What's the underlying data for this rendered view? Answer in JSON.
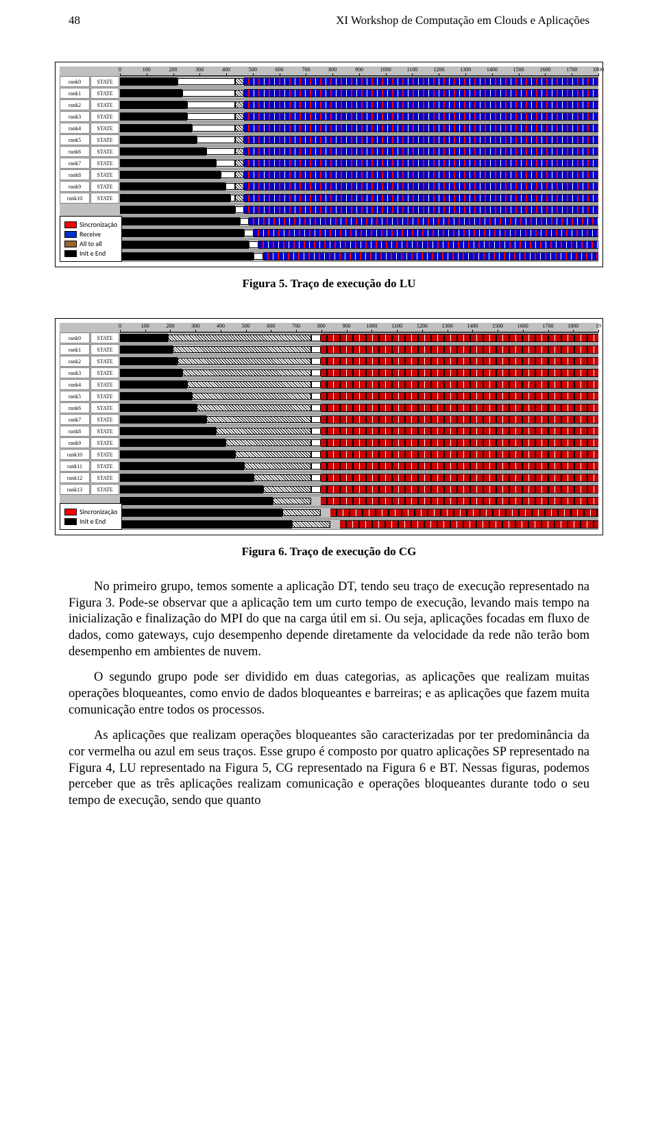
{
  "header": {
    "page_number": "48",
    "running_title": "XI Workshop de Computação em Clouds e Aplicações"
  },
  "figure5": {
    "caption": "Figura 5. Traço de execução do LU",
    "ruler_start": 0,
    "ruler_ticks": [
      "0",
      "100",
      "200",
      "300",
      "400",
      "500",
      "600",
      "700",
      "800",
      "900",
      "1000",
      "1100",
      "1200",
      "1300",
      "1400",
      "1500",
      "1600",
      "1700",
      "1800"
    ],
    "ranks": [
      "rank0",
      "rank1",
      "rank2",
      "rank3",
      "rank4",
      "rank5",
      "rank6",
      "rank7",
      "rank8",
      "rank9",
      "rank10"
    ],
    "state_label": "STATE",
    "init_widths_pct": [
      12,
      13,
      14,
      14,
      15,
      16,
      18,
      20,
      21,
      22,
      23
    ],
    "hatch_start_pct": 24,
    "hatch_end_pct": 26,
    "pattern_start_pct": 26,
    "legend": [
      {
        "label": "Sincronização",
        "color": "#ff0000"
      },
      {
        "label": "Receive",
        "color": "#0033cc"
      },
      {
        "label": "All to all",
        "color": "#996633"
      },
      {
        "label": "Init e End",
        "color": "#000000"
      }
    ],
    "colors": {
      "background": "#c0c0c0",
      "row_bg": "#ffffff"
    }
  },
  "figure6": {
    "caption": "Figura 6. Traço de execução do CG",
    "ruler_ticks": [
      "0",
      "100",
      "200",
      "300",
      "400",
      "500",
      "600",
      "700",
      "800",
      "900",
      "1000",
      "1100",
      "1200",
      "1300",
      "1400",
      "1500",
      "1600",
      "1700",
      "1800",
      "19"
    ],
    "ranks": [
      "rank0",
      "rank1",
      "rank2",
      "rank3",
      "rank4",
      "rank5",
      "rank6",
      "rank7",
      "rank8",
      "rank9",
      "rank10",
      "rank11",
      "rank12",
      "rank13"
    ],
    "state_label": "STATE",
    "init_widths_pct": [
      10,
      11,
      12,
      13,
      14,
      15,
      16,
      18,
      20,
      22,
      24,
      26,
      28,
      30
    ],
    "hatch_widths_pct": [
      30,
      29,
      28,
      27,
      26,
      25,
      24,
      22,
      20,
      18,
      16,
      14,
      12,
      10
    ],
    "pattern_start_pct": 42,
    "legend": [
      {
        "label": "Sincronização",
        "color": "#ff0000"
      },
      {
        "label": "Init e End",
        "color": "#000000"
      }
    ]
  },
  "paragraphs": [
    "No primeiro grupo, temos somente a aplicação DT, tendo seu traço de execução representado na Figura 3. Pode-se observar que a aplicação tem um curto tempo de execução, levando mais tempo na inicialização e finalização do MPI do que na carga útil em si. Ou seja, aplicações focadas em fluxo de dados, como gateways, cujo desempenho depende diretamente da velocidade da rede não terão bom desempenho em ambientes de nuvem.",
    "O segundo grupo pode ser dividido em duas categorias, as aplicações que realizam muitas operações bloqueantes, como envio de dados bloqueantes e barreiras; e as aplicações que fazem muita comunicação entre todos os processos.",
    "As aplicações que realizam operações bloqueantes são caracterizadas por ter predominância da cor vermelha ou azul em seus traços. Esse grupo é composto por quatro aplicações SP representado na Figura 4, LU representado na Figura 5, CG representado na Figura 6 e BT. Nessas figuras, podemos perceber que as três aplicações realizam comunicação e operações bloqueantes durante todo o seu tempo de execução, sendo que quanto"
  ]
}
